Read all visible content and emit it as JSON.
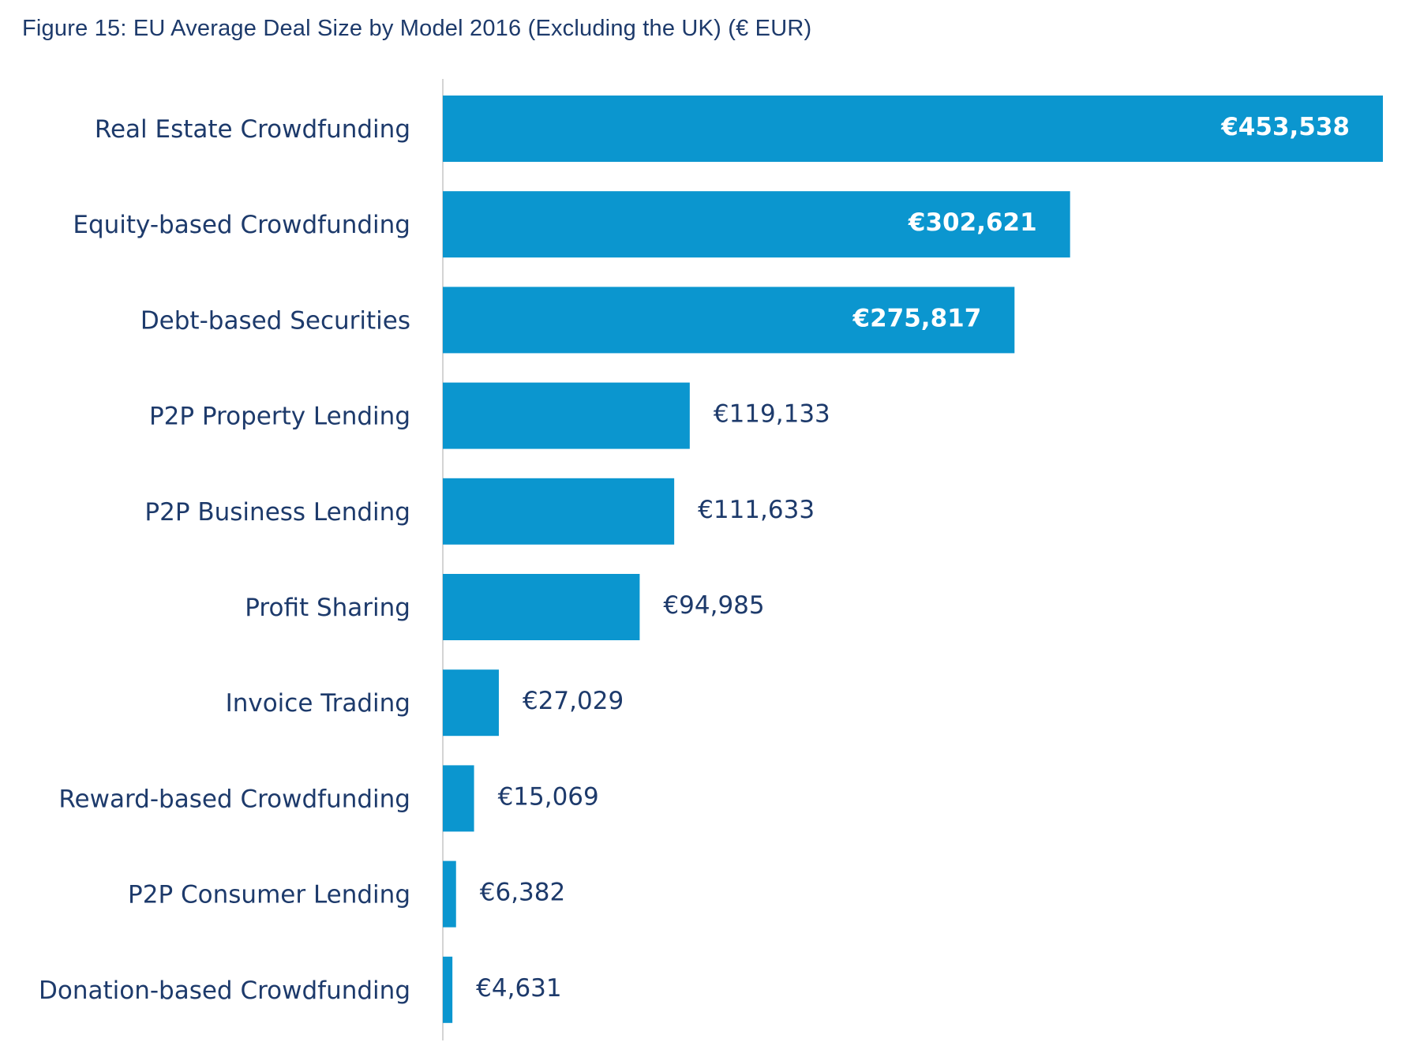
{
  "chart_data": {
    "type": "bar",
    "orientation": "horizontal",
    "title": "Figure 15: EU Average Deal Size by Model 2016 (Excluding the UK) (€ EUR)",
    "categories": [
      "Real Estate Crowdfunding",
      "Equity-based Crowdfunding",
      "Debt-based Securities",
      "P2P Property Lending",
      "P2P Business Lending",
      "Profit Sharing",
      "Invoice Trading",
      "Reward-based Crowdfunding",
      "P2P Consumer Lending",
      "Donation-based Crowdfunding"
    ],
    "values": [
      453538,
      302621,
      275817,
      119133,
      111633,
      94985,
      27029,
      15069,
      6382,
      4631
    ],
    "value_labels": [
      "€453,538",
      "€302,621",
      "€275,817",
      "€119,133",
      "€111,633",
      "€94,985",
      "€27,029",
      "€15,069",
      "€6,382",
      "€4,631"
    ],
    "xlim": [
      0,
      453538
    ],
    "xlabel": "",
    "ylabel": "",
    "grid": false,
    "bar_color": "#0b96cf",
    "label_color": "#1d3a6b"
  }
}
